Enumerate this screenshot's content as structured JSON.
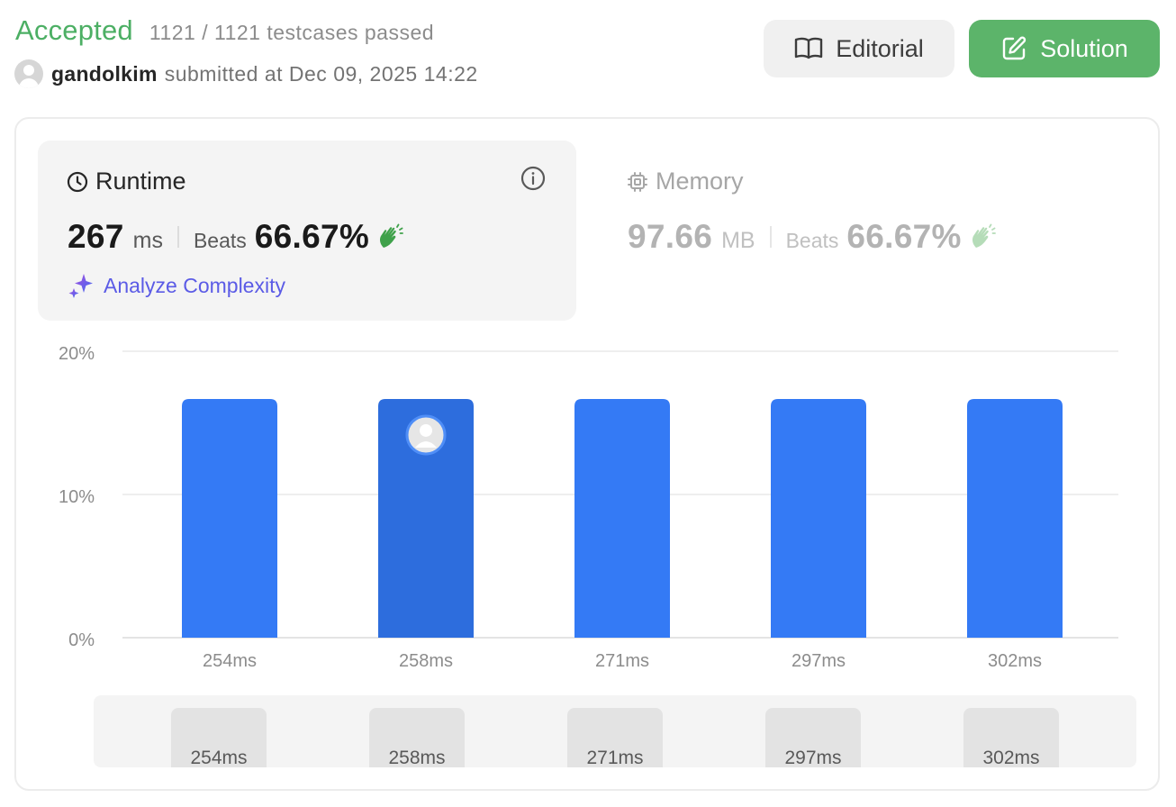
{
  "header": {
    "status": "Accepted",
    "tests": "1121 / 1121 testcases passed",
    "username": "gandolkim",
    "submitted": "submitted at Dec 09, 2025 14:22"
  },
  "buttons": {
    "editorial": "Editorial",
    "solution": "Solution"
  },
  "runtime": {
    "title": "Runtime",
    "value": "267",
    "unit": "ms",
    "beats_label": "Beats",
    "beats_value": "66.67%",
    "analyze": "Analyze Complexity"
  },
  "memory": {
    "title": "Memory",
    "value": "97.66",
    "unit": "MB",
    "beats_label": "Beats",
    "beats_value": "66.67%"
  },
  "colors": {
    "accepted": "#4caf64",
    "solution_button": "#5cb46a",
    "bar": "#347af5",
    "bar_selected": "#2d6ddd",
    "analyze_from": "#9a4fe0",
    "analyze_to": "#4c6af0"
  },
  "icons": {
    "editorial": "book-icon",
    "solution": "edit-icon",
    "runtime": "clock-icon",
    "memory": "cpu-icon",
    "info": "info-icon",
    "beats": "clap-icon",
    "analyze": "sparkle-icon"
  },
  "chart_data": {
    "type": "bar",
    "categories": [
      "254ms",
      "258ms",
      "271ms",
      "297ms",
      "302ms"
    ],
    "values": [
      16.67,
      16.67,
      16.67,
      16.67,
      16.67
    ],
    "selected_category": "258ms",
    "ylim": [
      0,
      20
    ],
    "yticks": [
      "0%",
      "10%",
      "20%"
    ],
    "grid": true,
    "xlabel": "",
    "ylabel": ""
  },
  "distribution_scroller": [
    "254ms",
    "258ms",
    "271ms",
    "297ms",
    "302ms"
  ]
}
